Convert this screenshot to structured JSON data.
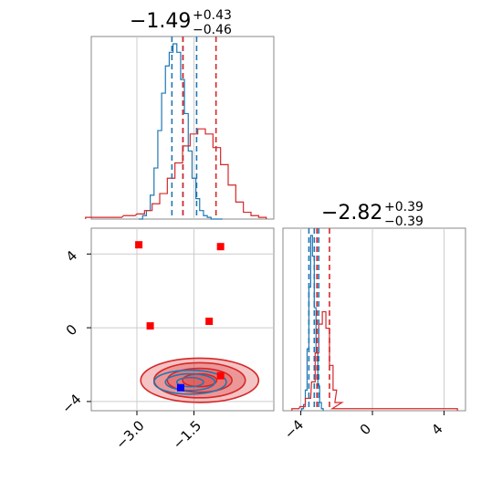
{
  "chart_data": [
    {
      "type": "histogram",
      "panel": "marginal-x",
      "title": {
        "main": "−1.49",
        "upper": "+0.43",
        "lower": "−0.46"
      },
      "xlim": [
        -4.2,
        0.6
      ],
      "grid": true,
      "series": [
        {
          "color": "#1f77b4",
          "x": [
            -2.9,
            -2.8,
            -2.7,
            -2.6,
            -2.5,
            -2.4,
            -2.3,
            -2.2,
            -2.1,
            -2.0,
            -1.9,
            -1.8,
            -1.7,
            -1.6,
            -1.5,
            -1.4,
            -1.3,
            -1.2,
            -1.1,
            -1.0,
            -0.9,
            -0.8
          ],
          "values": [
            0,
            2,
            5,
            14,
            30,
            52,
            74,
            90,
            98,
            103,
            98,
            82,
            62,
            40,
            24,
            12,
            5,
            2,
            1,
            0,
            0,
            0
          ],
          "quantile_lines": [
            -2.08,
            -1.79,
            -1.43
          ]
        },
        {
          "color": "#d62728",
          "x": [
            -4.1,
            -3.6,
            -3.2,
            -2.9,
            -2.7,
            -2.5,
            -2.3,
            -2.1,
            -1.9,
            -1.7,
            -1.5,
            -1.3,
            -1.1,
            -0.9,
            -0.7,
            -0.5,
            -0.3,
            -0.1,
            0.1,
            0.3
          ],
          "values": [
            1,
            1,
            2,
            3,
            5,
            9,
            15,
            24,
            33,
            43,
            50,
            53,
            50,
            42,
            32,
            20,
            10,
            4,
            2,
            1
          ],
          "quantile_lines": [
            -1.79,
            -0.92
          ]
        }
      ],
      "xticks": [
        -3.0,
        -1.5
      ]
    },
    {
      "type": "histogram",
      "panel": "marginal-y",
      "title": {
        "main": "−2.82",
        "upper": "+0.39",
        "lower": "−0.39"
      },
      "xlim": [
        -5.0,
        5.2
      ],
      "xticks": [
        -4,
        0,
        4
      ],
      "xtick_labels": [
        "−4",
        "0",
        "4"
      ],
      "grid": true,
      "series": [
        {
          "color": "#1f77b4",
          "x": [
            -3.9,
            -3.8,
            -3.7,
            -3.6,
            -3.5,
            -3.4,
            -3.3,
            -3.2,
            -3.1,
            -3.0,
            -2.9,
            -2.8
          ],
          "values": [
            1,
            3,
            10,
            30,
            60,
            85,
            75,
            50,
            28,
            12,
            4,
            1
          ],
          "quantile_lines": [
            -3.55,
            -3.25,
            -3.0
          ]
        },
        {
          "color": "#d62728",
          "x": [
            -4.3,
            -3.9,
            -3.6,
            -3.3,
            -3.1,
            -2.9,
            -2.7,
            -2.5,
            -2.3,
            -2.1,
            -1.9,
            -1.5,
            0.0,
            4.0,
            4.5
          ],
          "values": [
            1,
            2,
            6,
            14,
            28,
            42,
            48,
            40,
            22,
            10,
            4,
            1,
            1,
            1,
            1
          ],
          "quantile_lines": [
            -3.1,
            -2.4
          ]
        }
      ]
    },
    {
      "type": "scatter",
      "panel": "joint",
      "xlim": [
        -4.2,
        0.6
      ],
      "ylim": [
        -4.5,
        5.4
      ],
      "xticks": [
        -3.0,
        -1.5
      ],
      "xtick_labels": [
        "−3.0",
        "−1.5"
      ],
      "yticks": [
        -4,
        0,
        4
      ],
      "ytick_labels": [
        "−4",
        "0",
        "4"
      ],
      "grid": true,
      "markers": [
        {
          "color": "#ff0000",
          "x": -2.95,
          "y": 4.5
        },
        {
          "color": "#ff0000",
          "x": -0.8,
          "y": 4.4
        },
        {
          "color": "#ff0000",
          "x": -2.65,
          "y": 0.1
        },
        {
          "color": "#ff0000",
          "x": -1.1,
          "y": 0.35
        },
        {
          "color": "#ff0000",
          "x": -0.8,
          "y": -2.6
        },
        {
          "color": "#0000ff",
          "x": -1.85,
          "y": -3.25
        }
      ],
      "contours": [
        {
          "color": "#d62728",
          "cx": -1.35,
          "cy": -2.85,
          "rx": [
            0.45,
            0.85,
            1.2,
            1.55
          ],
          "ry": [
            0.35,
            0.65,
            0.95,
            1.2
          ],
          "filled": true
        },
        {
          "color": "#1f77b4",
          "cx": -1.6,
          "cy": -2.95,
          "rx": [
            0.35,
            0.65,
            0.95
          ],
          "ry": [
            0.25,
            0.45,
            0.65
          ],
          "filled": false
        }
      ]
    }
  ]
}
